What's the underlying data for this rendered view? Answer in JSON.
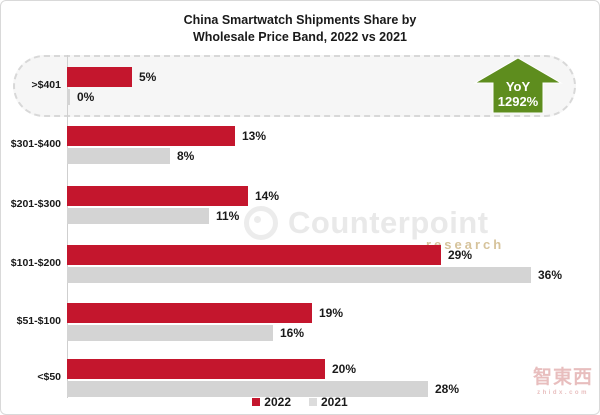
{
  "title": {
    "line1": "China Smartwatch Shipments Share by",
    "line2": "Wholesale Price Band, 2022 vs 2021"
  },
  "chart_data": {
    "type": "bar",
    "orientation": "horizontal",
    "title": "China Smartwatch Shipments Share by Wholesale Price Band, 2022 vs 2021",
    "categories": [
      ">$401",
      "$301-$400",
      "$201-$300",
      "$101-$200",
      "$51-$100",
      "<$50"
    ],
    "series": [
      {
        "name": "2022",
        "color": "#c4162d",
        "values": [
          5,
          13,
          14,
          29,
          19,
          20
        ]
      },
      {
        "name": "2021",
        "color": "#d4d4d4",
        "values": [
          0,
          8,
          11,
          36,
          16,
          28
        ]
      }
    ],
    "value_suffix": "%",
    "xlim": [
      0,
      39.5
    ],
    "grid": false,
    "legend_position": "bottom-center",
    "highlight_category": ">$401"
  },
  "annotation": {
    "yoy_label": "YoY",
    "yoy_value": "1292%",
    "arrow_color": "#5e8d1e",
    "applies_to": ">$401"
  },
  "watermarks": {
    "counterpoint": {
      "brand": "Counterpoint",
      "sub": "research"
    },
    "zhidx": {
      "text": "智東西",
      "domain": "zhidx.com"
    }
  },
  "colors": {
    "bar_2022": "#c4162d",
    "bar_2021": "#d4d4d4",
    "legend_2021_swatch": "#dcdcdc",
    "highlight_bg": "#f6f6f6",
    "highlight_border": "#d8d8d8",
    "arrow_green": "#5e8d1e",
    "text": "#1a1a1a"
  }
}
